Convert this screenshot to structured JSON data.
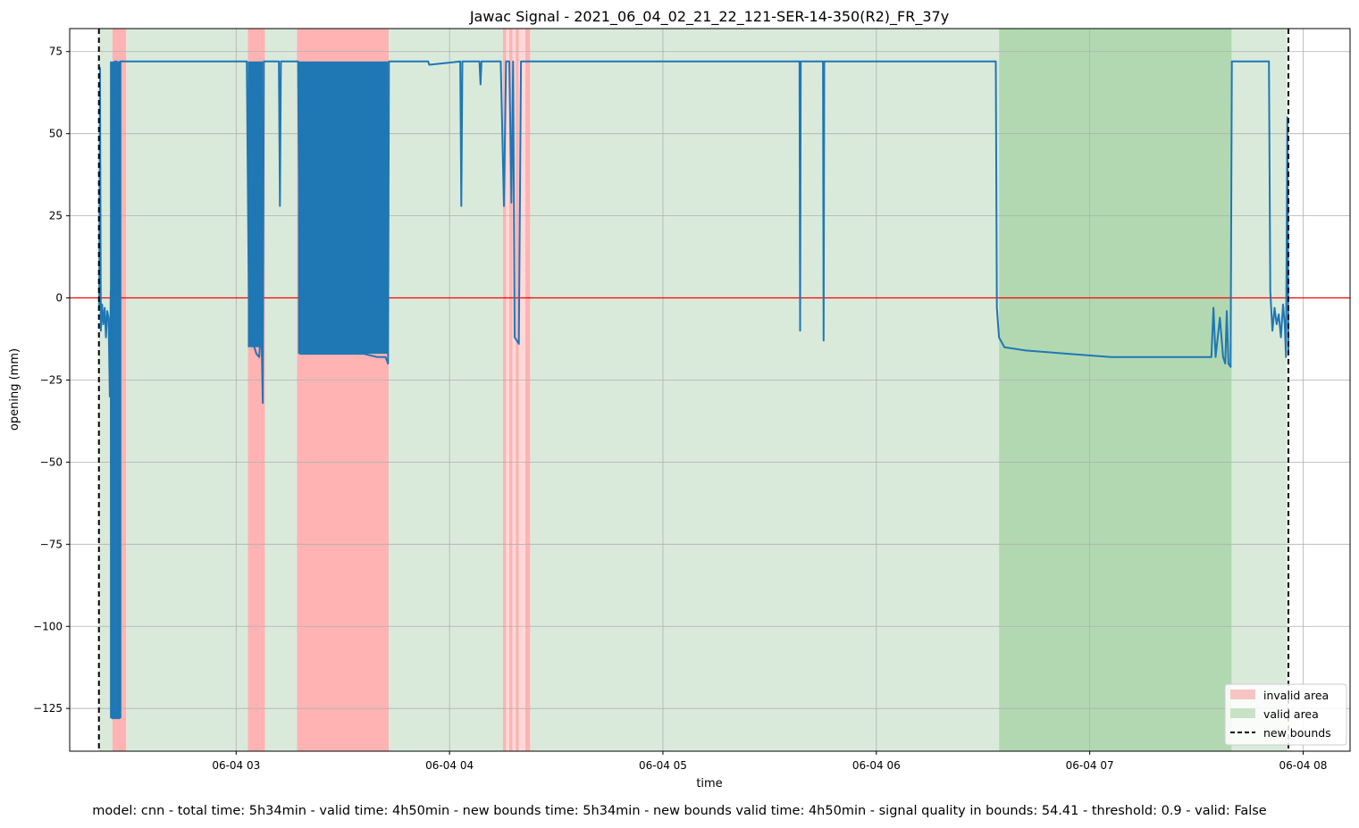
{
  "chart_data": {
    "type": "line",
    "title": "Jawac Signal - 2021_06_04_02_21_22_121-SER-14-350(R2)_FR_37y",
    "xlabel": "time",
    "ylabel": "opening (mm)",
    "ylim": [
      -138,
      82
    ],
    "xlim_hours": [
      2.22,
      8.22
    ],
    "grid": true,
    "x_ticks": [
      {
        "label": "06-04 03",
        "hour": 3
      },
      {
        "label": "06-04 04",
        "hour": 4
      },
      {
        "label": "06-04 05",
        "hour": 5
      },
      {
        "label": "06-04 06",
        "hour": 6
      },
      {
        "label": "06-04 07",
        "hour": 7
      },
      {
        "label": "06-04 08",
        "hour": 8
      }
    ],
    "y_ticks": [
      75,
      50,
      25,
      0,
      -25,
      -50,
      -75,
      -100,
      -125
    ],
    "y_tick_labels": [
      "75",
      "50",
      "25",
      "0",
      "−25",
      "−50",
      "−75",
      "−100",
      "−125"
    ],
    "reference_line": {
      "y": 0,
      "color": "#ff0000"
    },
    "bounds": [
      2.357,
      7.931
    ],
    "areas": [
      {
        "kind": "valid",
        "start": 2.357,
        "end": 2.42
      },
      {
        "kind": "invalid",
        "start": 2.42,
        "end": 2.485
      },
      {
        "kind": "valid",
        "start": 2.485,
        "end": 3.055
      },
      {
        "kind": "invalid",
        "start": 3.055,
        "end": 3.135
      },
      {
        "kind": "valid",
        "start": 3.135,
        "end": 3.285
      },
      {
        "kind": "invalid",
        "start": 3.285,
        "end": 3.715
      },
      {
        "kind": "valid",
        "start": 3.715,
        "end": 4.25
      },
      {
        "kind": "invalid",
        "start": 4.25,
        "end": 4.265
      },
      {
        "kind": "invalid_light",
        "start": 4.265,
        "end": 4.28
      },
      {
        "kind": "invalid",
        "start": 4.28,
        "end": 4.295
      },
      {
        "kind": "invalid_light",
        "start": 4.295,
        "end": 4.31
      },
      {
        "kind": "invalid",
        "start": 4.31,
        "end": 4.325
      },
      {
        "kind": "invalid_light",
        "start": 4.325,
        "end": 4.355
      },
      {
        "kind": "invalid",
        "start": 4.355,
        "end": 4.378
      },
      {
        "kind": "valid",
        "start": 4.378,
        "end": 6.575
      },
      {
        "kind": "valid_dark",
        "start": 6.575,
        "end": 7.665
      },
      {
        "kind": "valid",
        "start": 7.665,
        "end": 7.925
      }
    ],
    "series": [
      {
        "color": "#1f77b4",
        "points": [
          [
            2.358,
            -3
          ],
          [
            2.362,
            70
          ],
          [
            2.366,
            -10
          ],
          [
            2.372,
            -2
          ],
          [
            2.378,
            -8
          ],
          [
            2.384,
            -3
          ],
          [
            2.39,
            -12
          ],
          [
            2.396,
            -4
          ],
          [
            2.402,
            -6
          ],
          [
            2.408,
            -30
          ],
          [
            2.412,
            2
          ],
          [
            2.416,
            -127
          ],
          [
            2.42,
            -128
          ],
          [
            2.424,
            2
          ],
          [
            2.428,
            -128
          ],
          [
            2.432,
            72
          ],
          [
            2.436,
            -128
          ],
          [
            2.44,
            72
          ],
          [
            2.444,
            -128
          ],
          [
            2.448,
            0
          ],
          [
            2.452,
            -128
          ],
          [
            2.456,
            72
          ],
          [
            2.462,
            72
          ],
          [
            3.05,
            72
          ],
          [
            3.06,
            -4
          ],
          [
            3.068,
            -10
          ],
          [
            3.076,
            -14
          ],
          [
            3.085,
            -15
          ],
          [
            3.095,
            -17
          ],
          [
            3.108,
            -18
          ],
          [
            3.118,
            -8
          ],
          [
            3.125,
            -32
          ],
          [
            3.13,
            72
          ],
          [
            3.2,
            72
          ],
          [
            3.205,
            28
          ],
          [
            3.21,
            72
          ],
          [
            3.29,
            72
          ],
          [
            3.3,
            -17
          ],
          [
            3.36,
            -17
          ],
          [
            3.42,
            -17
          ],
          [
            3.48,
            -17
          ],
          [
            3.54,
            -17
          ],
          [
            3.6,
            -17
          ],
          [
            3.66,
            -18
          ],
          [
            3.7,
            -18
          ],
          [
            3.712,
            -20
          ],
          [
            3.716,
            72
          ],
          [
            3.9,
            72
          ],
          [
            3.905,
            71
          ],
          [
            4.05,
            72
          ],
          [
            4.055,
            28
          ],
          [
            4.06,
            72
          ],
          [
            4.14,
            72
          ],
          [
            4.145,
            65
          ],
          [
            4.15,
            72
          ],
          [
            4.24,
            72
          ],
          [
            4.255,
            28
          ],
          [
            4.265,
            72
          ],
          [
            4.28,
            72
          ],
          [
            4.29,
            29
          ],
          [
            4.298,
            72
          ],
          [
            4.305,
            -12
          ],
          [
            4.315,
            -13
          ],
          [
            4.325,
            -14
          ],
          [
            4.335,
            72
          ],
          [
            5.64,
            72
          ],
          [
            5.643,
            -10
          ],
          [
            5.646,
            72
          ],
          [
            5.75,
            72
          ],
          [
            5.753,
            -13
          ],
          [
            5.756,
            72
          ],
          [
            6.56,
            72
          ],
          [
            6.565,
            -3
          ],
          [
            6.575,
            -12
          ],
          [
            6.6,
            -15
          ],
          [
            6.7,
            -16
          ],
          [
            6.9,
            -17
          ],
          [
            7.1,
            -18
          ],
          [
            7.3,
            -18
          ],
          [
            7.5,
            -18
          ],
          [
            7.57,
            -18
          ],
          [
            7.58,
            -3
          ],
          [
            7.59,
            -18
          ],
          [
            7.61,
            -6
          ],
          [
            7.625,
            -18
          ],
          [
            7.635,
            -20
          ],
          [
            7.642,
            -4
          ],
          [
            7.65,
            -20
          ],
          [
            7.66,
            -21
          ],
          [
            7.666,
            72
          ],
          [
            7.84,
            72
          ],
          [
            7.846,
            2
          ],
          [
            7.856,
            -10
          ],
          [
            7.866,
            -3
          ],
          [
            7.876,
            -8
          ],
          [
            7.886,
            -5
          ],
          [
            7.896,
            -12
          ],
          [
            7.906,
            -2
          ],
          [
            7.914,
            -8
          ],
          [
            7.92,
            -18
          ],
          [
            7.926,
            55
          ],
          [
            7.931,
            -17
          ]
        ]
      }
    ],
    "bands": [
      {
        "start": 2.409,
        "end": 2.462,
        "min": -128,
        "max": 72
      },
      {
        "start": 3.055,
        "end": 3.125,
        "min": -15,
        "max": 72
      },
      {
        "start": 3.29,
        "end": 3.712,
        "min": -17,
        "max": 72
      }
    ],
    "legend": {
      "position": "lower-right",
      "entries": [
        {
          "label": "invalid area",
          "color": "#f8c3c3",
          "style": "patch"
        },
        {
          "label": "valid area",
          "color": "#c8e2c8",
          "style": "patch"
        },
        {
          "label": "new bounds",
          "color": "#000000",
          "style": "dashed"
        }
      ]
    },
    "colors": {
      "valid": "#d9eada",
      "valid_dark": "#b2d8b2",
      "invalid": "#ffb3b3",
      "invalid_light": "#ffd9d9",
      "line": "#1f77b4",
      "grid": "#b0b0b0"
    }
  },
  "footer_text": "model: cnn - total time: 5h34min - valid time: 4h50min - new bounds time: 5h34min - new bounds valid time: 4h50min - signal quality in bounds: 54.41 - threshold: 0.9 - valid: False"
}
